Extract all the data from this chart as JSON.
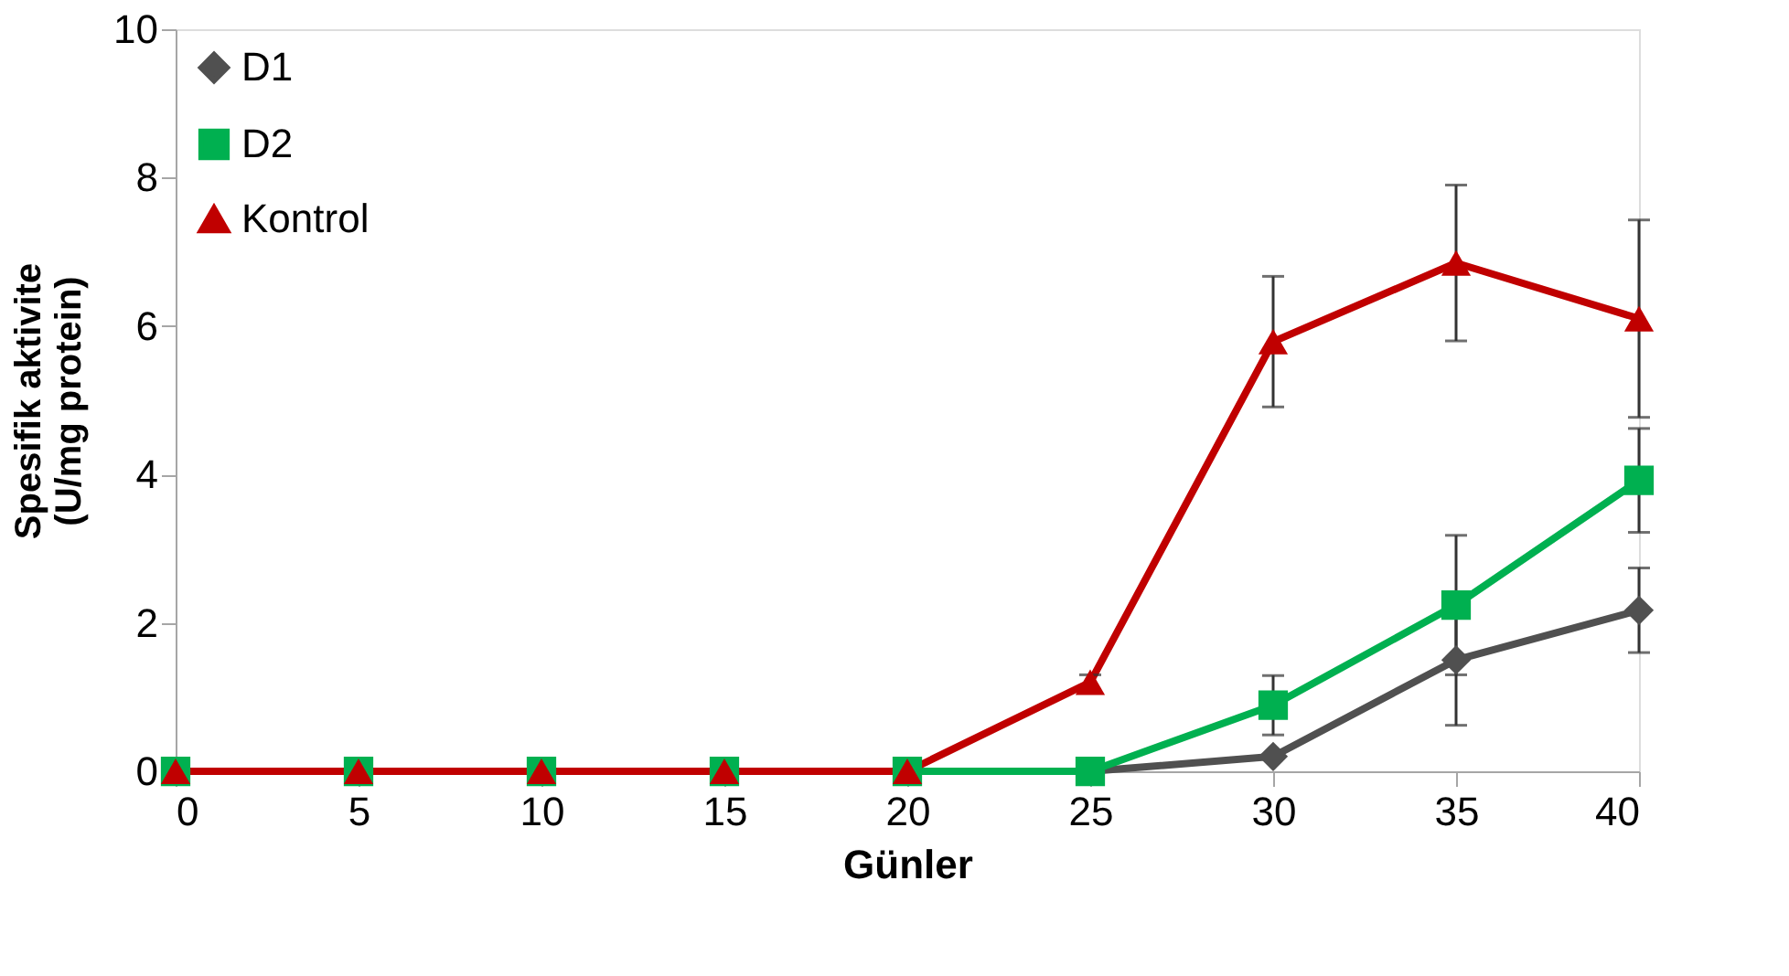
{
  "chart_data": {
    "type": "line",
    "xlabel": "Günler",
    "ylabel": "Spesifik aktivite\n(U/mg protein)",
    "x": [
      0,
      5,
      10,
      15,
      20,
      25,
      30,
      35,
      40
    ],
    "xlim": [
      0,
      40
    ],
    "xticks": [
      0,
      5,
      10,
      15,
      20,
      25,
      30,
      35,
      40
    ],
    "ylim": [
      0,
      10
    ],
    "yticks": [
      0,
      2,
      4,
      6,
      8,
      10
    ],
    "grid": false,
    "legend": "top left",
    "series": [
      {
        "name": "D1",
        "color": "#505050",
        "marker": "diamond",
        "values": [
          0,
          0,
          0,
          0,
          0,
          0,
          0.2,
          1.5,
          2.17
        ],
        "errors": [
          null,
          null,
          null,
          null,
          null,
          null,
          null,
          0.88,
          0.57
        ]
      },
      {
        "name": "D2",
        "color": "#00b050",
        "marker": "square",
        "values": [
          0,
          0,
          0,
          0,
          0,
          0,
          0.89,
          2.24,
          3.92
        ],
        "errors": [
          null,
          null,
          null,
          null,
          null,
          null,
          0.4,
          0.94,
          0.7
        ]
      },
      {
        "name": "Kontrol",
        "color": "#c00000",
        "marker": "triangle",
        "values": [
          0,
          0,
          0,
          0,
          0,
          1.2,
          5.79,
          6.85,
          6.1
        ],
        "errors": [
          null,
          null,
          null,
          null,
          null,
          0.1,
          0.88,
          1.05,
          1.33
        ]
      }
    ]
  }
}
